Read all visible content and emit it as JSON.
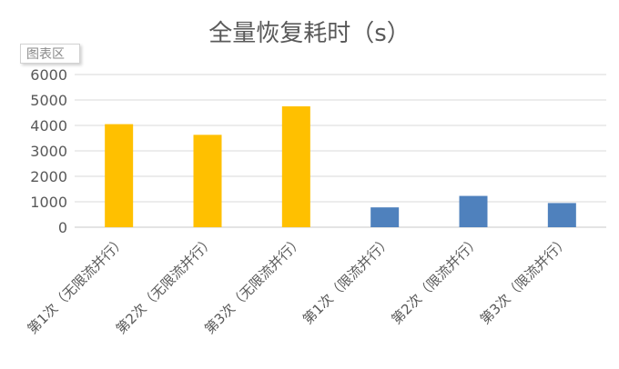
{
  "chart_area_tag": "图表区",
  "chart_data": {
    "type": "bar",
    "title": "全量恢复耗时（s）",
    "categories": [
      "第1次（无限流并行）",
      "第2次（无限流并行）",
      "第3次（无限流并行）",
      "第1次（限流并行）",
      "第2次（限流并行）",
      "第3次（限流并行）"
    ],
    "values": [
      4050,
      3630,
      4750,
      780,
      1230,
      950
    ],
    "bar_colors": [
      "#ffc000",
      "#ffc000",
      "#ffc000",
      "#4f81bd",
      "#4f81bd",
      "#4f81bd"
    ],
    "ylim": [
      0,
      6000
    ],
    "yticks": [
      0,
      1000,
      2000,
      3000,
      4000,
      5000,
      6000
    ],
    "grid": true,
    "xlabel": "",
    "ylabel": ""
  }
}
